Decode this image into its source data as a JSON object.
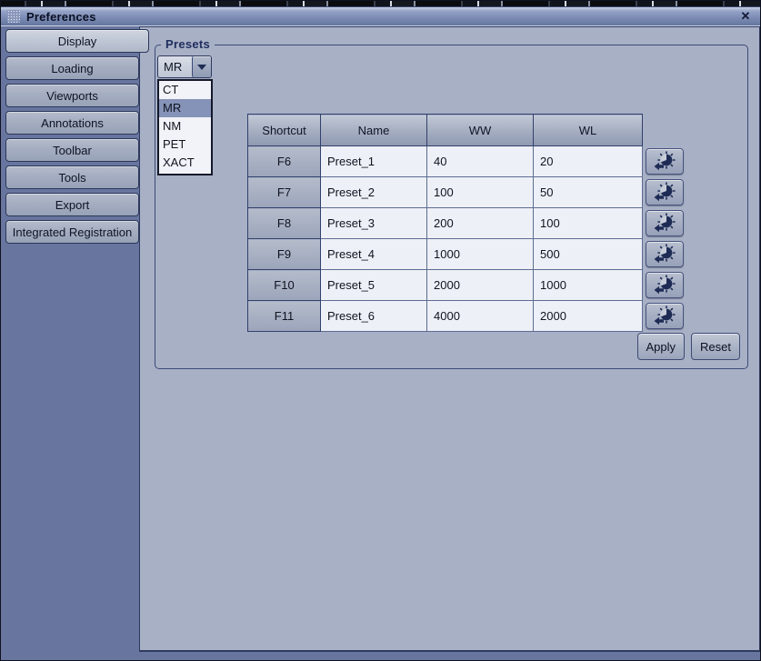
{
  "window": {
    "title": "Preferences",
    "close_glyph": "✕"
  },
  "sidebar": {
    "items": [
      {
        "label": "Display",
        "active": true
      },
      {
        "label": "Loading",
        "active": false
      },
      {
        "label": "Viewports",
        "active": false
      },
      {
        "label": "Annotations",
        "active": false
      },
      {
        "label": "Toolbar",
        "active": false
      },
      {
        "label": "Tools",
        "active": false
      },
      {
        "label": "Export",
        "active": false
      },
      {
        "label": "Integrated Registration",
        "active": false
      }
    ]
  },
  "presets": {
    "group_label": "Presets",
    "combo": {
      "value": "MR"
    },
    "dropdown": {
      "options": [
        "CT",
        "MR",
        "NM",
        "PET",
        "XACT"
      ],
      "selected": "MR"
    },
    "table": {
      "headers": [
        "Shortcut",
        "Name",
        "WW",
        "WL"
      ],
      "rows": [
        {
          "shortcut": "F6",
          "name": "Preset_1",
          "ww": "40",
          "wl": "20"
        },
        {
          "shortcut": "F7",
          "name": "Preset_2",
          "ww": "100",
          "wl": "50"
        },
        {
          "shortcut": "F8",
          "name": "Preset_3",
          "ww": "200",
          "wl": "100"
        },
        {
          "shortcut": "F9",
          "name": "Preset_4",
          "ww": "1000",
          "wl": "500"
        },
        {
          "shortcut": "F10",
          "name": "Preset_5",
          "ww": "2000",
          "wl": "1000"
        },
        {
          "shortcut": "F11",
          "name": "Preset_6",
          "ww": "4000",
          "wl": "2000"
        }
      ]
    },
    "buttons": {
      "apply": "Apply",
      "reset": "Reset"
    }
  },
  "colors": {
    "accent_navy": "#1e2c55",
    "panel": "#a7b0c5",
    "sidebar": "#68759f",
    "selection": "#8593b8",
    "cell_bg": "#edf0f6"
  }
}
